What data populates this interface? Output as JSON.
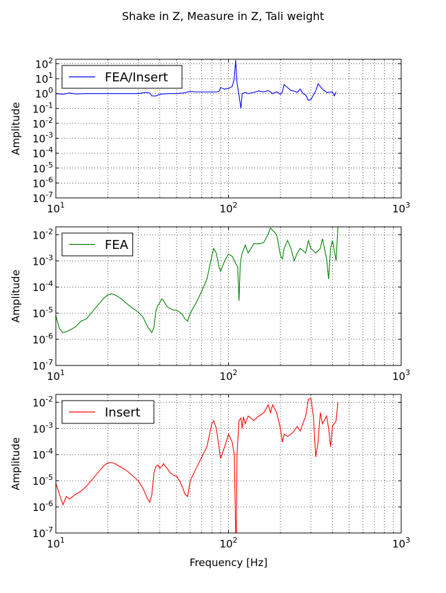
{
  "figure": {
    "suptitle": "Shake in Z, Measure in Z, Tali weight"
  },
  "chart_data": [
    {
      "type": "line",
      "xscale": "log",
      "yscale": "log",
      "xlim": [
        10,
        1000
      ],
      "ylim": [
        1e-07,
        200
      ],
      "xticks": [
        10,
        100,
        1000
      ],
      "xtick_labels": [
        [
          "10",
          "1"
        ],
        [
          "10",
          "2"
        ],
        [
          "10",
          "3"
        ]
      ],
      "yticks": [
        1e-07,
        1e-06,
        1e-05,
        0.0001,
        0.001,
        0.01,
        0.1,
        1,
        10,
        100
      ],
      "ytick_labels": [
        [
          "10",
          "-7"
        ],
        [
          "10",
          "-6"
        ],
        [
          "10",
          "-5"
        ],
        [
          "10",
          "-4"
        ],
        [
          "10",
          "-3"
        ],
        [
          "10",
          "-2"
        ],
        [
          "10",
          "-1"
        ],
        [
          "10",
          "0"
        ],
        [
          "10",
          "1"
        ],
        [
          "10",
          "2"
        ]
      ],
      "grid": true,
      "legend_position": "top-left",
      "xlabel": "",
      "ylabel": "Amplitude",
      "series": [
        {
          "name": "FEA/Insert",
          "color": "#0000ff",
          "x": [
            10,
            11,
            12,
            13,
            15,
            18,
            20,
            25,
            30,
            33,
            35,
            36,
            38,
            40,
            45,
            50,
            55,
            58,
            60,
            65,
            70,
            80,
            85,
            88,
            90,
            95,
            100,
            105,
            108,
            110,
            112,
            115,
            118,
            120,
            125,
            130,
            140,
            150,
            160,
            170,
            180,
            190,
            200,
            205,
            210,
            220,
            230,
            240,
            250,
            260,
            270,
            280,
            290,
            300,
            320,
            330,
            350,
            370,
            400,
            410,
            420
          ],
          "y": [
            1.0,
            0.9,
            1.1,
            0.95,
            1.0,
            1.0,
            1.0,
            1.0,
            1.0,
            1.2,
            1.1,
            0.7,
            0.7,
            0.9,
            1.0,
            1.0,
            1.1,
            1.3,
            1.4,
            1.3,
            1.3,
            1.3,
            1.3,
            1.4,
            2.5,
            2.0,
            2.2,
            3.0,
            10,
            180,
            5.0,
            0.8,
            0.1,
            1.0,
            1.2,
            1.0,
            1.2,
            1.5,
            1.3,
            1.6,
            1.0,
            1.3,
            0.9,
            1.3,
            4.0,
            2.5,
            1.6,
            1.5,
            1.2,
            2.0,
            1.0,
            0.8,
            0.35,
            0.4,
            1.5,
            4.5,
            2.0,
            1.2,
            1.3,
            0.7,
            1.3
          ]
        }
      ]
    },
    {
      "type": "line",
      "xscale": "log",
      "yscale": "log",
      "xlim": [
        10,
        1000
      ],
      "ylim": [
        1e-07,
        0.02
      ],
      "xticks": [
        10,
        100,
        1000
      ],
      "xtick_labels": [
        [
          "10",
          "1"
        ],
        [
          "10",
          "2"
        ],
        [
          "10",
          "3"
        ]
      ],
      "yticks": [
        1e-07,
        1e-06,
        1e-05,
        0.0001,
        0.001,
        0.01
      ],
      "ytick_labels": [
        [
          "10",
          "-7"
        ],
        [
          "10",
          "-6"
        ],
        [
          "10",
          "-5"
        ],
        [
          "10",
          "-4"
        ],
        [
          "10",
          "-3"
        ],
        [
          "10",
          "-2"
        ]
      ],
      "grid": true,
      "legend_position": "top-left",
      "xlabel": "",
      "ylabel": "Amplitude",
      "series": [
        {
          "name": "FEA",
          "color": "#008000",
          "x": [
            10,
            10.5,
            11,
            11.5,
            12,
            13,
            14,
            15,
            16,
            17,
            18,
            19,
            20,
            21,
            22,
            24,
            26,
            28,
            30,
            32,
            34,
            35,
            36,
            37,
            38,
            39,
            40,
            41,
            42,
            44,
            46,
            48,
            50,
            52,
            54,
            56,
            58,
            60,
            65,
            70,
            75,
            80,
            82,
            85,
            88,
            90,
            95,
            100,
            105,
            110,
            113,
            115,
            117,
            120,
            125,
            130,
            140,
            150,
            160,
            170,
            175,
            180,
            190,
            200,
            205,
            210,
            220,
            230,
            240,
            250,
            260,
            280,
            290,
            300,
            320,
            340,
            350,
            370,
            380,
            390,
            400,
            420,
            430
          ],
          "y": [
            8e-06,
            2.5e-06,
            1.8e-06,
            2e-06,
            2.2e-06,
            3e-06,
            5e-06,
            6e-06,
            1e-05,
            1.6e-05,
            2.5e-05,
            3.8e-05,
            5e-05,
            5.5e-05,
            5e-05,
            3.5e-05,
            2.2e-05,
            1.5e-05,
            1.1e-05,
            7e-06,
            3e-06,
            2.3e-06,
            1.8e-06,
            3e-06,
            1.2e-05,
            2e-05,
            2.5e-05,
            3.5e-05,
            3e-05,
            1.8e-05,
            1.5e-05,
            1.3e-05,
            1.3e-05,
            1.1e-05,
            9e-06,
            6e-06,
            5e-06,
            1e-05,
            2.5e-05,
            7e-05,
            0.0002,
            0.0015,
            0.003,
            0.002,
            0.0006,
            0.0004,
            0.001,
            0.0018,
            0.0015,
            0.0008,
            0.0006,
            3e-05,
            0.0008,
            0.002,
            0.004,
            0.002,
            0.0045,
            0.0045,
            0.005,
            0.011,
            0.018,
            0.015,
            0.01,
            0.0016,
            0.0012,
            0.003,
            0.006,
            0.003,
            0.001,
            0.002,
            0.003,
            0.002,
            0.006,
            0.003,
            0.002,
            0.003,
            0.007,
            0.0012,
            0.0002,
            0.003,
            0.006,
            0.001,
            0.02
          ]
        }
      ]
    },
    {
      "type": "line",
      "xscale": "log",
      "yscale": "log",
      "xlim": [
        10,
        1000
      ],
      "ylim": [
        1e-07,
        0.02
      ],
      "xticks": [
        10,
        100,
        1000
      ],
      "xtick_labels": [
        [
          "10",
          "1"
        ],
        [
          "10",
          "2"
        ],
        [
          "10",
          "3"
        ]
      ],
      "yticks": [
        1e-07,
        1e-06,
        1e-05,
        0.0001,
        0.001,
        0.01
      ],
      "ytick_labels": [
        [
          "10",
          "-7"
        ],
        [
          "10",
          "-6"
        ],
        [
          "10",
          "-5"
        ],
        [
          "10",
          "-4"
        ],
        [
          "10",
          "-3"
        ],
        [
          "10",
          "-2"
        ]
      ],
      "grid": true,
      "legend_position": "top-left",
      "xlabel": "Frequency [Hz]",
      "ylabel": "Amplitude",
      "series": [
        {
          "name": "Insert",
          "color": "#ff0000",
          "x": [
            10,
            10.5,
            11,
            11.5,
            12,
            13,
            14,
            15,
            16,
            17,
            18,
            19,
            20,
            21,
            22,
            24,
            26,
            28,
            30,
            32,
            34,
            35,
            36,
            37,
            38,
            39,
            40,
            41,
            42,
            44,
            46,
            48,
            50,
            52,
            54,
            56,
            58,
            60,
            65,
            70,
            75,
            80,
            82,
            85,
            88,
            90,
            95,
            100,
            105,
            108,
            110,
            111,
            112,
            115,
            118,
            120,
            122,
            125,
            130,
            140,
            150,
            160,
            170,
            175,
            180,
            190,
            200,
            205,
            210,
            220,
            230,
            240,
            250,
            260,
            280,
            290,
            300,
            310,
            320,
            330,
            340,
            350,
            370,
            380,
            390,
            400,
            420,
            430
          ],
          "y": [
            8e-06,
            3e-06,
            1.2e-06,
            2.5e-06,
            2e-06,
            3e-06,
            4e-06,
            6e-06,
            1e-05,
            1.6e-05,
            2.5e-05,
            3.8e-05,
            4.8e-05,
            5e-05,
            4.5e-05,
            3.2e-05,
            2.3e-05,
            1.5e-05,
            1e-05,
            5e-06,
            2e-06,
            1.5e-06,
            3e-06,
            2e-05,
            3.5e-05,
            4e-05,
            3e-05,
            3.5e-05,
            4.5e-05,
            3e-05,
            2e-05,
            1.6e-05,
            1.5e-05,
            1e-05,
            6e-06,
            3e-06,
            2.5e-06,
            1e-05,
            3e-05,
            8e-05,
            0.0002,
            0.0015,
            0.002,
            0.001,
            0.0002,
            7e-05,
            0.0002,
            0.0006,
            0.0003,
            0.0001,
            1e-07,
            1e-07,
            0.0001,
            0.002,
            0.0025,
            0.001,
            0.0028,
            0.0015,
            0.003,
            0.002,
            0.003,
            0.004,
            0.008,
            0.004,
            0.008,
            0.004,
            0.001,
            0.0003,
            0.0006,
            0.0005,
            0.0006,
            0.0008,
            0.0012,
            0.0008,
            0.003,
            0.013,
            0.014,
            0.003,
            8e-05,
            0.0003,
            0.004,
            0.0015,
            0.003,
            0.001,
            0.0002,
            0.0012,
            0.002,
            0.01
          ]
        }
      ]
    }
  ]
}
